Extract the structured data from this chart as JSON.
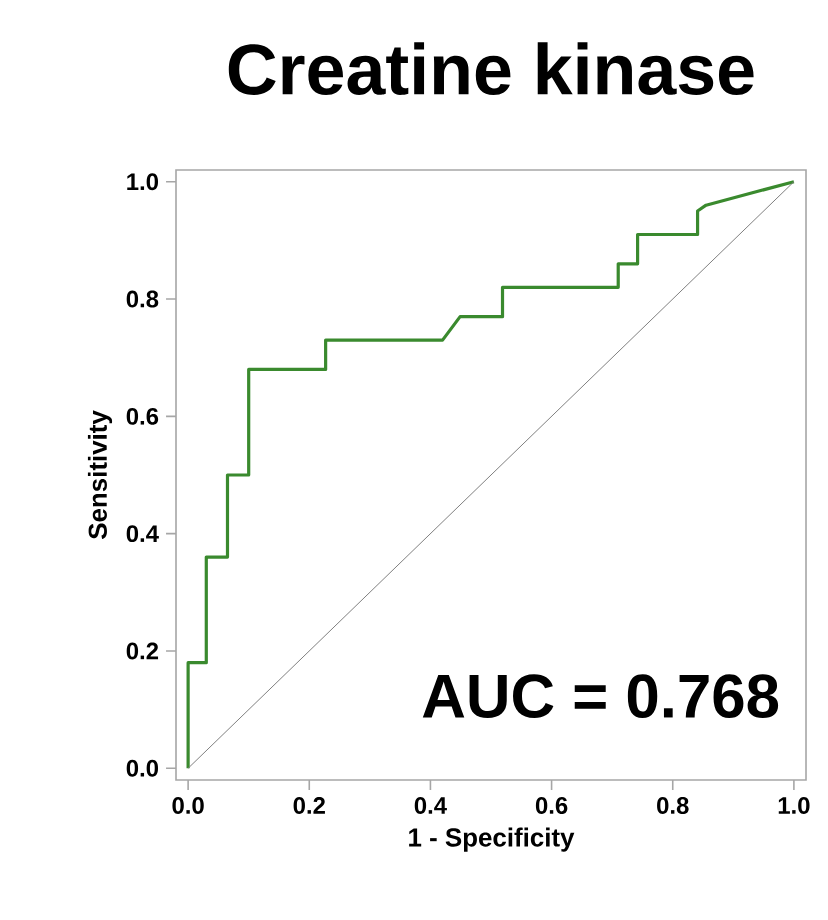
{
  "chart_data": {
    "type": "step",
    "title": "Creatine kinase",
    "xlabel": "1 - Specificity",
    "ylabel": "Sensitivity",
    "series": [
      {
        "color": "#3a8a2e",
        "x": [
          0,
          0,
          0.03,
          0.03,
          0.065,
          0.065,
          0.1,
          0.1,
          0.227,
          0.227,
          0.42,
          0.449,
          0.519,
          0.519,
          0.71,
          0.71,
          0.742,
          0.742,
          0.841,
          0.841,
          0.855,
          1
        ],
        "values": [
          0,
          0.18,
          0.18,
          0.36,
          0.36,
          0.5,
          0.5,
          0.68,
          0.68,
          0.73,
          0.73,
          0.77,
          0.77,
          0.82,
          0.82,
          0.86,
          0.86,
          0.91,
          0.91,
          0.95,
          0.96,
          1
        ]
      },
      {
        "type": "line",
        "color": "#808080",
        "x": [
          0,
          1
        ],
        "values": [
          0,
          1
        ]
      }
    ],
    "xlim": [
      -0.02,
      1.02
    ],
    "ylim": [
      -0.02,
      1.02
    ],
    "xticks": [
      {
        "value": 0,
        "label": "0.0"
      },
      {
        "value": 0.2,
        "label": "0.2"
      },
      {
        "value": 0.4,
        "label": "0.4"
      },
      {
        "value": 0.6,
        "label": "0.6"
      },
      {
        "value": 0.8,
        "label": "0.8"
      },
      {
        "value": 1,
        "label": "1.0"
      }
    ],
    "yticks": [
      {
        "value": 0,
        "label": "0.0"
      },
      {
        "value": 0.2,
        "label": "0.2"
      },
      {
        "value": 0.4,
        "label": "0.4"
      },
      {
        "value": 0.6,
        "label": "0.6"
      },
      {
        "value": 0.8,
        "label": "0.8"
      },
      {
        "value": 1,
        "label": "1.0"
      }
    ],
    "annotations": [
      "AUC = 0.768"
    ]
  }
}
